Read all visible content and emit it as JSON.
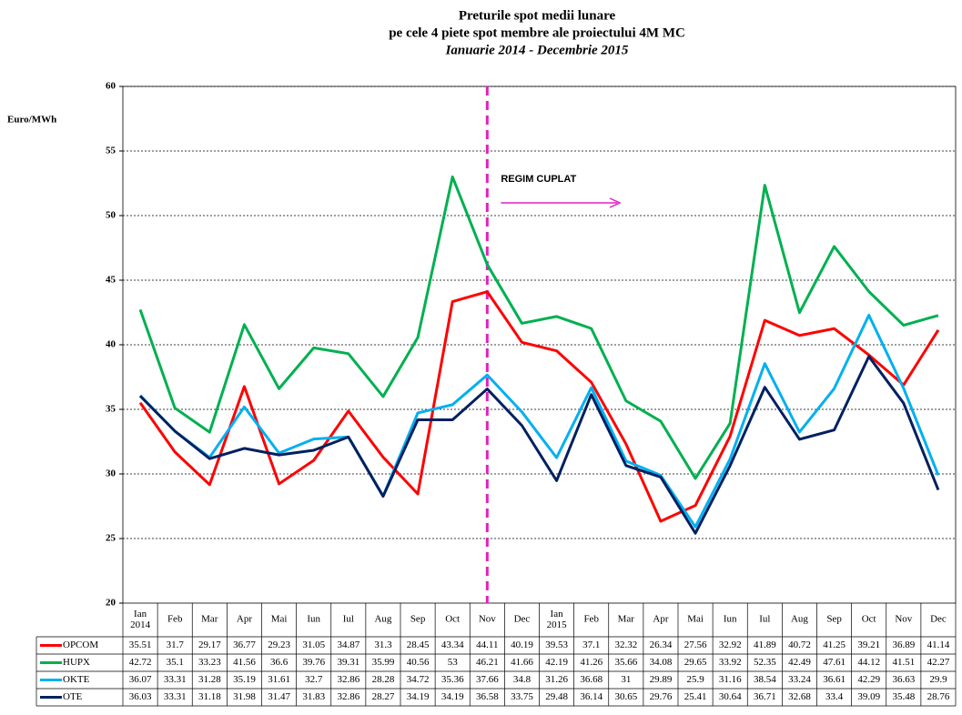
{
  "chart_data": {
    "type": "line",
    "title": "Preturile spot medii lunare",
    "subtitle": "pe cele 4 piete spot membre ale proiectului 4M MC",
    "period": "Ianuarie 2014 - Decembrie 2015",
    "y_label": "Euro/MWh",
    "annotation": "REGIM CUPLAT",
    "categories": [
      "Ian 2014",
      "Feb",
      "Mar",
      "Apr",
      "Mai",
      "Iun",
      "Iul",
      "Aug",
      "Sep",
      "Oct",
      "Nov",
      "Dec",
      "Ian 2015",
      "Feb",
      "Mar",
      "Apr",
      "Mai",
      "Iun",
      "Iul",
      "Aug",
      "Sep",
      "Oct",
      "Nov",
      "Dec"
    ],
    "series": [
      {
        "name": "OPCOM",
        "color": "#ff0000",
        "values": [
          35.51,
          31.7,
          29.17,
          36.77,
          29.23,
          31.05,
          34.87,
          31.3,
          28.45,
          43.34,
          44.11,
          40.19,
          39.53,
          37.1,
          32.32,
          26.34,
          27.56,
          32.92,
          41.89,
          40.72,
          41.25,
          39.21,
          36.89,
          41.14
        ]
      },
      {
        "name": "HUPX",
        "color": "#00b050",
        "values": [
          42.72,
          35.1,
          33.23,
          41.56,
          36.6,
          39.76,
          39.31,
          35.99,
          40.56,
          53,
          46.21,
          41.66,
          42.19,
          41.26,
          35.66,
          34.08,
          29.65,
          33.92,
          52.35,
          42.49,
          47.61,
          44.12,
          41.51,
          42.27
        ]
      },
      {
        "name": "OKTE",
        "color": "#00b0f0",
        "values": [
          36.07,
          33.31,
          31.28,
          35.19,
          31.61,
          32.7,
          32.86,
          28.28,
          34.72,
          35.36,
          37.66,
          34.8,
          31.26,
          36.68,
          31,
          29.89,
          25.9,
          31.16,
          38.54,
          33.24,
          36.61,
          42.29,
          36.63,
          29.9
        ]
      },
      {
        "name": "OTE",
        "color": "#002060",
        "values": [
          36.03,
          33.31,
          31.18,
          31.98,
          31.47,
          31.83,
          32.86,
          28.27,
          34.19,
          34.19,
          36.58,
          33.75,
          29.48,
          36.14,
          30.65,
          29.76,
          25.41,
          30.64,
          36.71,
          32.68,
          33.4,
          39.09,
          35.48,
          28.76
        ]
      }
    ],
    "ylim": [
      20,
      60
    ],
    "yticks": [
      20,
      25,
      30,
      35,
      40,
      45,
      50,
      55,
      60
    ],
    "grid": true
  }
}
